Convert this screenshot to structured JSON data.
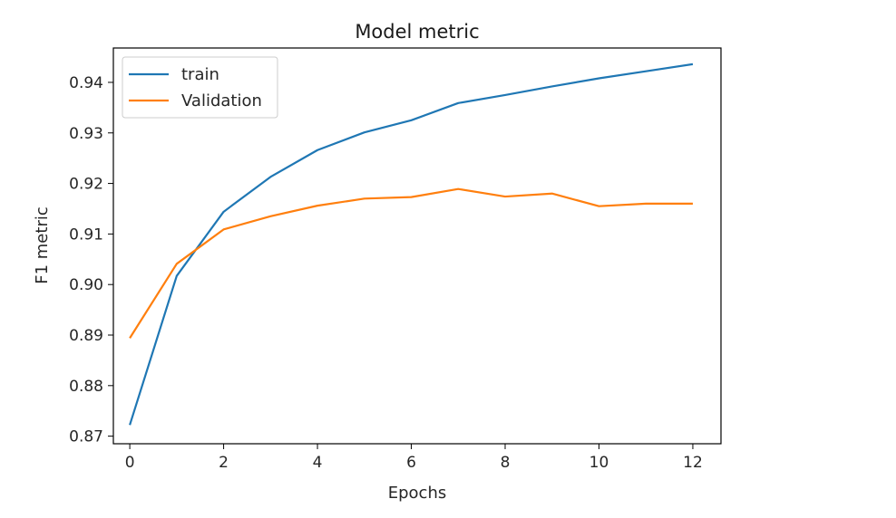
{
  "chart_data": {
    "type": "line",
    "title": "Model metric",
    "xlabel": "Epochs",
    "ylabel": "F1 metric",
    "xlim": [
      -0.35,
      12.6
    ],
    "ylim": [
      0.8685,
      0.9468
    ],
    "xticks": [
      0,
      2,
      4,
      6,
      8,
      10,
      12
    ],
    "yticks": [
      0.87,
      0.88,
      0.89,
      0.9,
      0.91,
      0.92,
      0.93,
      0.94
    ],
    "xtick_labels": [
      "0",
      "2",
      "4",
      "6",
      "8",
      "10",
      "12"
    ],
    "ytick_labels": [
      "0.87",
      "0.88",
      "0.89",
      "0.90",
      "0.91",
      "0.92",
      "0.93",
      "0.94"
    ],
    "grid": false,
    "legend_position": "top-left",
    "x": [
      0,
      1,
      2,
      3,
      4,
      5,
      6,
      7,
      8,
      9,
      10,
      11,
      12
    ],
    "series": [
      {
        "name": "train",
        "color": "#1f77b4",
        "values": [
          0.8722,
          0.9017,
          0.9144,
          0.9213,
          0.9266,
          0.9301,
          0.9325,
          0.9359,
          0.9375,
          0.9392,
          0.9408,
          0.9422,
          0.9436
        ]
      },
      {
        "name": "Validation",
        "color": "#ff7f0e",
        "values": [
          0.8894,
          0.9041,
          0.9109,
          0.9135,
          0.9156,
          0.917,
          0.9173,
          0.9189,
          0.9174,
          0.918,
          0.9155,
          0.916,
          0.916
        ]
      }
    ]
  }
}
